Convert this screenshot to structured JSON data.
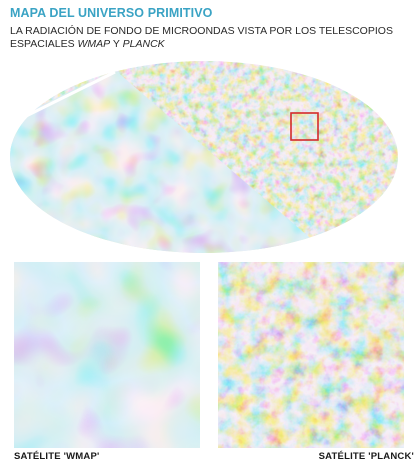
{
  "header": {
    "title": "MAPA DEL UNIVERSO PRIMITIVO",
    "subtitle_line1": "LA RADIACIÓN DE FONDO DE MICROONDAS VISTA POR LOS TELESCOPIOS",
    "subtitle_line2_prefix": "ESPACIALES ",
    "subtitle_wmap": "WMAP",
    "subtitle_connector": " Y ",
    "subtitle_planck": "PLANCK"
  },
  "captions": {
    "left": "SATÉLITE 'WMAP'",
    "right": "SATÉLITE 'PLANCK'"
  },
  "colors": {
    "title": "#3aa3c4",
    "highlight_box": "#d42a2a",
    "divider": "#ffffff",
    "cmb_blue": "#2e5fb0",
    "cmb_light": "#a8d8ee",
    "cmb_yellow": "#f1c868",
    "cmb_orange": "#d8722c"
  }
}
